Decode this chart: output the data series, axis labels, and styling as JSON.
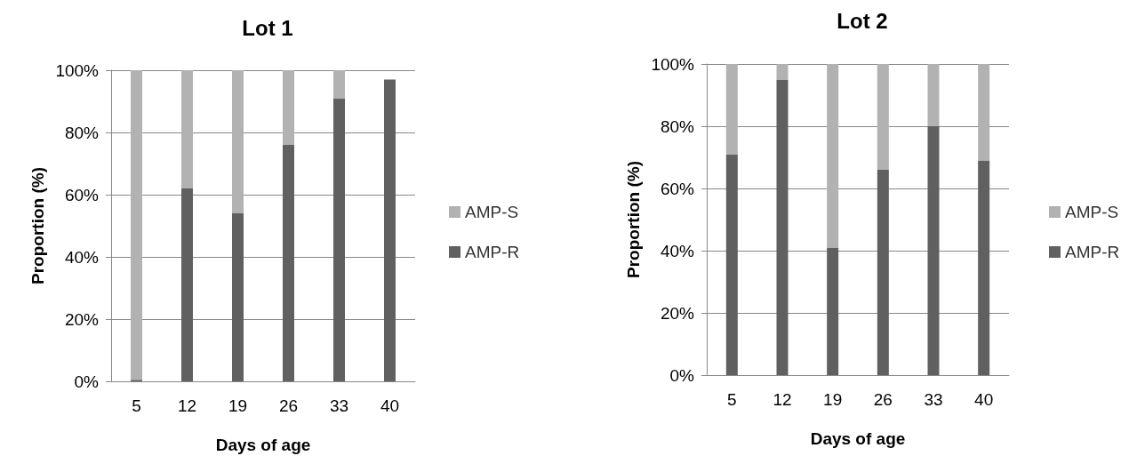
{
  "chart_data": [
    {
      "type": "bar",
      "title": "Lot 1",
      "xlabel": "Days of age",
      "ylabel": "Proportion (%)",
      "categories": [
        "5",
        "12",
        "19",
        "26",
        "33",
        "40"
      ],
      "stacked": true,
      "series": [
        {
          "name": "AMP-R",
          "color": "#606060",
          "values": [
            0.5,
            62,
            54,
            76,
            91,
            97
          ]
        },
        {
          "name": "AMP-S",
          "color": "#b2b2b2",
          "values": [
            99.5,
            38,
            46,
            24,
            9,
            0
          ]
        }
      ],
      "ylim": [
        0,
        100
      ],
      "yticks": [
        {
          "value": 0,
          "label": "0%"
        },
        {
          "value": 20,
          "label": "20%"
        },
        {
          "value": 40,
          "label": "40%"
        },
        {
          "value": 60,
          "label": "60%"
        },
        {
          "value": 80,
          "label": "80%"
        },
        {
          "value": 100,
          "label": "100%"
        }
      ],
      "grid": "y",
      "legend": "right"
    },
    {
      "type": "bar",
      "title": "Lot 2",
      "xlabel": "Days of age",
      "ylabel": "Proportion (%)",
      "categories": [
        "5",
        "12",
        "19",
        "26",
        "33",
        "40"
      ],
      "stacked": true,
      "series": [
        {
          "name": "AMP-R",
          "color": "#606060",
          "values": [
            71,
            95,
            41,
            66,
            80,
            69
          ]
        },
        {
          "name": "AMP-S",
          "color": "#b2b2b2",
          "values": [
            29,
            5,
            59,
            34,
            20,
            31
          ]
        }
      ],
      "ylim": [
        0,
        100
      ],
      "yticks": [
        {
          "value": 0,
          "label": "0%"
        },
        {
          "value": 20,
          "label": "20%"
        },
        {
          "value": 40,
          "label": "40%"
        },
        {
          "value": 60,
          "label": "60%"
        },
        {
          "value": 80,
          "label": "80%"
        },
        {
          "value": 100,
          "label": "100%"
        }
      ],
      "grid": "y",
      "legend": "right"
    }
  ]
}
